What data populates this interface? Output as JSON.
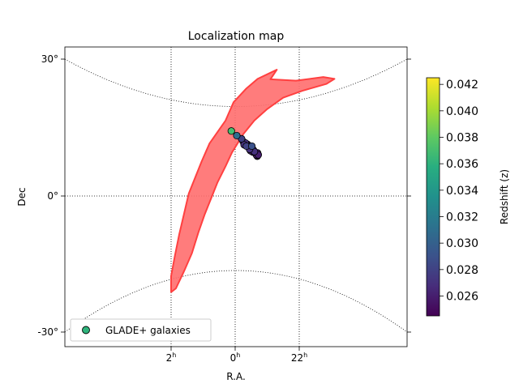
{
  "chart_data": {
    "type": "scatter",
    "title": "Localization map",
    "xlabel": "R.A.",
    "ylabel": "Dec",
    "x_ticks": [
      {
        "ra_hours": 2,
        "label": "2",
        "sup": "h"
      },
      {
        "ra_hours": 0,
        "label": "0",
        "sup": "h"
      },
      {
        "ra_hours": 22,
        "label": "22",
        "sup": "h"
      }
    ],
    "y_ticks": [
      {
        "dec": 30,
        "label": "30°"
      },
      {
        "dec": 0,
        "label": "0°"
      },
      {
        "dec": -30,
        "label": "-30°"
      }
    ],
    "ylim": [
      -32.5,
      30
    ],
    "grid": true,
    "legend": {
      "position": "lower-left",
      "label": "GLADE+ galaxies",
      "marker_color": "#2fb47c"
    },
    "colorbar": {
      "label": "Redshift (z)",
      "min": 0.0245,
      "max": 0.0425,
      "ticks": [
        "0.026",
        "0.028",
        "0.030",
        "0.032",
        "0.034",
        "0.036",
        "0.038",
        "0.040",
        "0.042"
      ],
      "colormap": "viridis"
    },
    "region_color": "#ff6e6e",
    "region_polygon": [
      [
        -1.1,
        25.5
      ],
      [
        -1.3,
        27.6
      ],
      [
        -0.7,
        25.6
      ],
      [
        -0.35,
        23.5
      ],
      [
        0.05,
        20.5
      ],
      [
        0.3,
        16.5
      ],
      [
        0.55,
        14.0
      ],
      [
        0.8,
        11.5
      ],
      [
        1.05,
        7.5
      ],
      [
        1.25,
        4.0
      ],
      [
        1.45,
        0.5
      ],
      [
        1.6,
        -4.0
      ],
      [
        1.75,
        -8.5
      ],
      [
        1.88,
        -13.0
      ],
      [
        2.0,
        -17.5
      ],
      [
        2.0,
        -21.0
      ],
      [
        1.85,
        -20.2
      ],
      [
        1.6,
        -16.5
      ],
      [
        1.35,
        -12.5
      ],
      [
        1.15,
        -8.0
      ],
      [
        0.95,
        -4.0
      ],
      [
        0.75,
        -0.5
      ],
      [
        0.55,
        3.0
      ],
      [
        0.3,
        6.5
      ],
      [
        0.1,
        9.5
      ],
      [
        -0.25,
        13.5
      ],
      [
        -0.6,
        16.5
      ],
      [
        -1.0,
        19.0
      ],
      [
        -1.5,
        21.5
      ],
      [
        -2.1,
        23.0
      ],
      [
        -2.85,
        24.5
      ],
      [
        -3.1,
        25.6
      ],
      [
        -2.75,
        26.0
      ],
      [
        -1.9,
        25.2
      ]
    ],
    "galaxies": [
      {
        "ra": 0.12,
        "dec": 14.2,
        "z": 0.037
      },
      {
        "ra": -0.05,
        "dec": 13.2,
        "z": 0.031
      },
      {
        "ra": -0.2,
        "dec": 12.5,
        "z": 0.028
      },
      {
        "ra": -0.25,
        "dec": 11.9,
        "z": 0.026
      },
      {
        "ra": -0.32,
        "dec": 11.6,
        "z": 0.027
      },
      {
        "ra": -0.38,
        "dec": 11.3,
        "z": 0.026
      },
      {
        "ra": -0.42,
        "dec": 11.0,
        "z": 0.026
      },
      {
        "ra": -0.46,
        "dec": 10.8,
        "z": 0.027
      },
      {
        "ra": -0.5,
        "dec": 10.5,
        "z": 0.026
      },
      {
        "ra": -0.53,
        "dec": 10.3,
        "z": 0.025
      },
      {
        "ra": -0.56,
        "dec": 10.1,
        "z": 0.026
      },
      {
        "ra": -0.58,
        "dec": 9.9,
        "z": 0.026
      },
      {
        "ra": -0.6,
        "dec": 9.7,
        "z": 0.027
      },
      {
        "ra": -0.62,
        "dec": 9.5,
        "z": 0.026
      },
      {
        "ra": -0.64,
        "dec": 9.3,
        "z": 0.025
      },
      {
        "ra": -0.66,
        "dec": 9.1,
        "z": 0.026
      },
      {
        "ra": -0.67,
        "dec": 8.9,
        "z": 0.026
      },
      {
        "ra": -0.69,
        "dec": 8.7,
        "z": 0.025
      },
      {
        "ra": -0.7,
        "dec": 9.4,
        "z": 0.026
      },
      {
        "ra": -0.72,
        "dec": 9.0,
        "z": 0.026
      },
      {
        "ra": -0.45,
        "dec": 10.2,
        "z": 0.027
      },
      {
        "ra": -0.35,
        "dec": 10.9,
        "z": 0.028
      },
      {
        "ra": -0.55,
        "dec": 9.6,
        "z": 0.026
      },
      {
        "ra": -0.48,
        "dec": 9.9,
        "z": 0.026
      },
      {
        "ra": -0.28,
        "dec": 11.2,
        "z": 0.027
      },
      {
        "ra": -0.52,
        "dec": 10.9,
        "z": 0.029
      }
    ]
  }
}
